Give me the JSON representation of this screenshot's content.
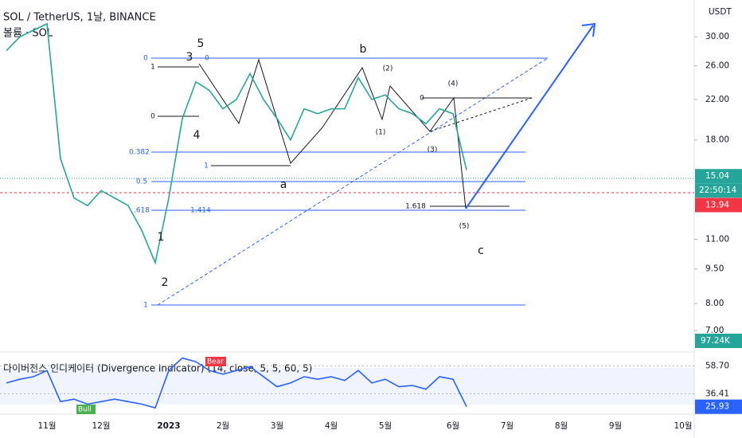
{
  "header": {
    "title": "SOL / TetherUS, 1날, BINANCE",
    "subtitle": "볼륨 · SOL"
  },
  "chart_data": {
    "type": "line",
    "log_scale": true,
    "color": "#26a69a",
    "categories": [
      null,
      null,
      null,
      "11월",
      null,
      null,
      null,
      "12월",
      null,
      null,
      null,
      null,
      "2023",
      null,
      null,
      null,
      "2월",
      null,
      null,
      null,
      "3월",
      null,
      null,
      null,
      "4월",
      null,
      null,
      null,
      "5월",
      null,
      null,
      null,
      null,
      "6월",
      null,
      null,
      null,
      "7월",
      null,
      null,
      null,
      "8월",
      null,
      null,
      null,
      "9월",
      null,
      null,
      null,
      null,
      "10월"
    ],
    "values": [
      28,
      30,
      31,
      32,
      16.4,
      13.5,
      13,
      14,
      13.5,
      13,
      11.5,
      9.8,
      13.5,
      20,
      24,
      23,
      21,
      22,
      25,
      22,
      20,
      18,
      21,
      20.5,
      21,
      21,
      24.5,
      22,
      22.5,
      21,
      20.5,
      19.5,
      21,
      20.5,
      15.5,
      null,
      null,
      null,
      null,
      null,
      null,
      null,
      null,
      null,
      null,
      null,
      null,
      null,
      null,
      null,
      null
    ],
    "y_unit": "USDT",
    "ylim": [
      6.6,
      36
    ],
    "yticks": [
      {
        "value": 30,
        "label": "30.00"
      },
      {
        "value": 26,
        "label": "26.00"
      },
      {
        "value": 22,
        "label": "22.00"
      },
      {
        "value": 18,
        "label": "18.00"
      },
      {
        "value": 11,
        "label": "11.00"
      },
      {
        "value": 9.5,
        "label": "9.50"
      },
      {
        "value": 8,
        "label": "8.00"
      },
      {
        "value": 7,
        "label": "7.00"
      }
    ],
    "last_price": {
      "value": 15.04,
      "label": "15.04"
    },
    "countdown": "22:50:14",
    "alert_price": {
      "value": 13.94,
      "label": "13.94"
    },
    "volume_label": "97.24K",
    "annotations": [
      "5",
      "3",
      "4",
      "1",
      "2",
      "a",
      "b",
      "c",
      "(1)",
      "(2)",
      "(3)",
      "(4)",
      "(5)",
      "0",
      "0",
      "1",
      "0",
      "0.382",
      "1",
      "0.5",
      ".618",
      "1.414",
      "1.618",
      "1",
      "0"
    ],
    "indicator": {
      "title": "다이버전스 인디케이터 (Divergence Indicator) (14, close, 5, 5, 60, 5)",
      "color": "#2962ff",
      "values": [
        45,
        48,
        50,
        55,
        30,
        32,
        28,
        30,
        32,
        30,
        28,
        25,
        55,
        65,
        62,
        55,
        52,
        55,
        58,
        50,
        42,
        45,
        50,
        48,
        50,
        47,
        55,
        45,
        48,
        42,
        43,
        40,
        50,
        48,
        26,
        null,
        null,
        null,
        null,
        null,
        null,
        null,
        null,
        null,
        null,
        null,
        null,
        null,
        null,
        null,
        null
      ],
      "ylim": [
        20,
        66
      ],
      "yticks": [
        {
          "value": 58.7,
          "label": "58.70"
        },
        {
          "value": 36.41,
          "label": "36.41"
        }
      ],
      "last": {
        "value": 25.93,
        "label": "25.93"
      },
      "bull_label": "Bull",
      "bear_label": "Bear"
    }
  }
}
